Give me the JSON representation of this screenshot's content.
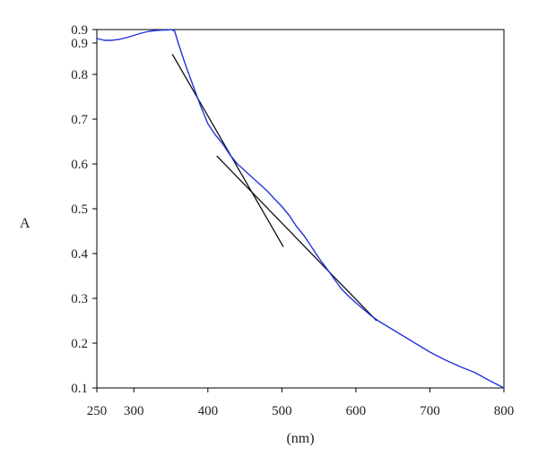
{
  "chart_data": {
    "type": "line",
    "title": "",
    "xlabel": "(nm)",
    "ylabel": "A",
    "xlim": [
      250,
      800
    ],
    "ylim": [
      0.1,
      0.9
    ],
    "grid": false,
    "legend": "none",
    "x_ticks": [
      {
        "value": 250,
        "label": "250"
      },
      {
        "value": 300,
        "label": "300"
      },
      {
        "value": 400,
        "label": "400"
      },
      {
        "value": 500,
        "label": "500"
      },
      {
        "value": 600,
        "label": "600"
      },
      {
        "value": 700,
        "label": "700"
      },
      {
        "value": 800,
        "label": "800"
      }
    ],
    "y_ticks": [
      {
        "value": 0.1,
        "label": "0.1"
      },
      {
        "value": 0.2,
        "label": "0.2"
      },
      {
        "value": 0.3,
        "label": "0.3"
      },
      {
        "value": 0.4,
        "label": "0.4"
      },
      {
        "value": 0.5,
        "label": "0.5"
      },
      {
        "value": 0.6,
        "label": "0.6"
      },
      {
        "value": 0.7,
        "label": "0.7"
      },
      {
        "value": 0.8,
        "label": "0.8"
      },
      {
        "value": 0.87,
        "label": "0.9"
      },
      {
        "value": 0.9,
        "label": "0.9"
      }
    ],
    "series": [
      {
        "color": "#2233dd",
        "x": [
          250,
          260,
          270,
          280,
          290,
          300,
          310,
          320,
          330,
          340,
          345,
          350,
          355,
          360,
          365,
          370,
          380,
          390,
          400,
          410,
          420,
          430,
          440,
          450,
          460,
          470,
          480,
          490,
          500,
          510,
          520,
          530,
          540,
          550,
          560,
          570,
          580,
          590,
          600,
          610,
          620,
          630,
          640,
          650,
          660,
          670,
          680,
          700,
          720,
          740,
          760,
          780,
          800
        ],
        "y": [
          0.88,
          0.876,
          0.876,
          0.878,
          0.882,
          0.887,
          0.892,
          0.896,
          0.898,
          0.899,
          0.899,
          0.9,
          0.897,
          0.87,
          0.845,
          0.82,
          0.775,
          0.73,
          0.69,
          0.665,
          0.645,
          0.62,
          0.6,
          0.585,
          0.57,
          0.555,
          0.54,
          0.522,
          0.505,
          0.485,
          0.46,
          0.44,
          0.415,
          0.39,
          0.368,
          0.345,
          0.322,
          0.305,
          0.29,
          0.276,
          0.262,
          0.25,
          0.24,
          0.23,
          0.22,
          0.21,
          0.2,
          0.18,
          0.163,
          0.148,
          0.135,
          0.117,
          0.1
        ]
      }
    ],
    "annotations": [
      {
        "type": "tangent-line",
        "color": "#111111",
        "x1": 352,
        "y1": 0.845,
        "x2": 502,
        "y2": 0.415
      },
      {
        "type": "tangent-line",
        "color": "#111111",
        "x1": 412,
        "y1": 0.618,
        "x2": 628,
        "y2": 0.25
      }
    ]
  }
}
